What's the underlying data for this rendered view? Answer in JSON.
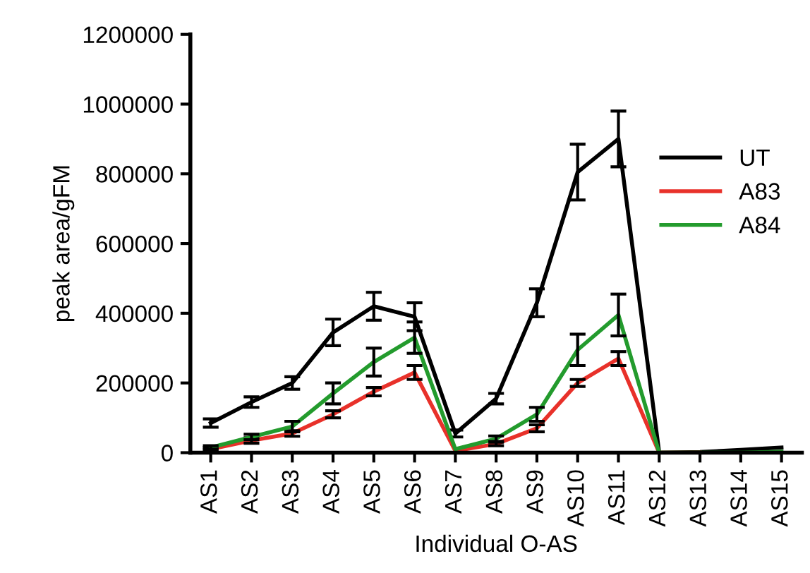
{
  "chart_data": {
    "type": "line",
    "xlabel": "Individual O-AS",
    "ylabel": "peak area/gFM",
    "categories": [
      "AS1",
      "AS2",
      "AS3",
      "AS4",
      "AS5",
      "AS6",
      "AS7",
      "AS8",
      "AS9",
      "AS10",
      "AS11",
      "AS12",
      "AS13",
      "AS14",
      "AS15"
    ],
    "series": [
      {
        "name": "UT",
        "color": "#000000",
        "values": [
          85000,
          145000,
          200000,
          345000,
          420000,
          390000,
          55000,
          155000,
          430000,
          805000,
          900000,
          0,
          2000,
          8000,
          15000
        ],
        "errors": [
          12000,
          15000,
          18000,
          38000,
          40000,
          40000,
          10000,
          15000,
          40000,
          80000,
          80000,
          null,
          null,
          null,
          null
        ]
      },
      {
        "name": "A83",
        "color": "#e8312a",
        "values": [
          10000,
          35000,
          55000,
          110000,
          175000,
          230000,
          5000,
          25000,
          70000,
          200000,
          270000,
          0,
          0,
          null,
          null
        ],
        "errors": [
          5000,
          8000,
          8000,
          10000,
          12000,
          20000,
          null,
          5000,
          10000,
          10000,
          20000,
          null,
          null,
          null,
          null
        ]
      },
      {
        "name": "A84",
        "color": "#239b2d",
        "values": [
          15000,
          45000,
          75000,
          170000,
          260000,
          330000,
          10000,
          40000,
          110000,
          295000,
          395000,
          0,
          0,
          0,
          3000
        ],
        "errors": [
          5000,
          8000,
          15000,
          30000,
          40000,
          45000,
          null,
          8000,
          20000,
          45000,
          60000,
          null,
          null,
          null,
          null
        ]
      }
    ],
    "ylim": [
      0,
      1200000
    ],
    "yticks": [
      0,
      200000,
      400000,
      600000,
      800000,
      1000000,
      1200000
    ],
    "grid": false,
    "legend": "right",
    "marker": "none",
    "line_style": "solid"
  }
}
